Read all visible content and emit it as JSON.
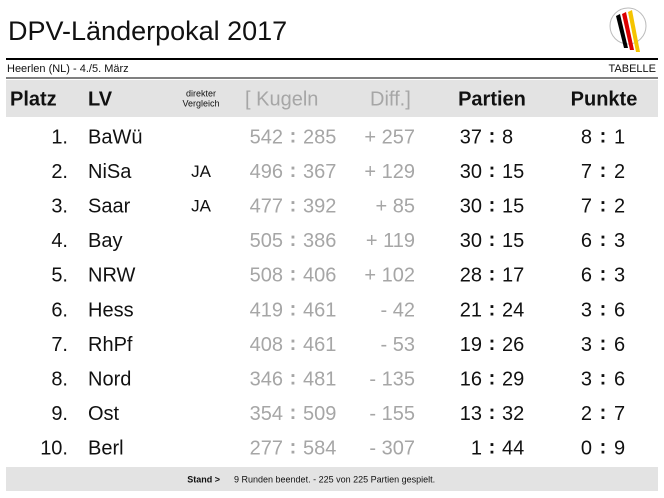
{
  "header": {
    "title": "DPV-Länderpokal 2017",
    "location": "Heerlen (NL) - 4./5. März",
    "section": "TABELLE"
  },
  "table": {
    "columns": {
      "platz": "Platz",
      "lv": "LV",
      "vergleich": [
        "direkter",
        "Vergleich"
      ],
      "kugeln": "[ Kugeln",
      "diff": "Diff.]",
      "partien": "Partien",
      "punkte": "Punkte"
    },
    "separator": ":",
    "rows": [
      {
        "platz": "1.",
        "lv": "BaWü",
        "kugeln": [
          "542",
          "285"
        ],
        "diff": "+ 257",
        "partien": [
          "37",
          "8"
        ],
        "punkte": [
          "8",
          "1"
        ]
      },
      {
        "platz": "2.",
        "lv": "NiSa",
        "vergleich": "JA",
        "kugeln": [
          "496",
          "367"
        ],
        "diff": "+ 129",
        "partien": [
          "30",
          "15"
        ],
        "punkte": [
          "7",
          "2"
        ]
      },
      {
        "platz": "3.",
        "lv": "Saar",
        "vergleich": "JA",
        "kugeln": [
          "477",
          "392"
        ],
        "diff": "+ 85",
        "partien": [
          "30",
          "15"
        ],
        "punkte": [
          "7",
          "2"
        ]
      },
      {
        "platz": "4.",
        "lv": "Bay",
        "kugeln": [
          "505",
          "386"
        ],
        "diff": "+ 119",
        "partien": [
          "30",
          "15"
        ],
        "punkte": [
          "6",
          "3"
        ]
      },
      {
        "platz": "5.",
        "lv": "NRW",
        "kugeln": [
          "508",
          "406"
        ],
        "diff": "+ 102",
        "partien": [
          "28",
          "17"
        ],
        "punkte": [
          "6",
          "3"
        ]
      },
      {
        "platz": "6.",
        "lv": "Hess",
        "kugeln": [
          "419",
          "461"
        ],
        "diff": "- 42",
        "partien": [
          "21",
          "24"
        ],
        "punkte": [
          "3",
          "6"
        ]
      },
      {
        "platz": "7.",
        "lv": "RhPf",
        "kugeln": [
          "408",
          "461"
        ],
        "diff": "- 53",
        "partien": [
          "19",
          "26"
        ],
        "punkte": [
          "3",
          "6"
        ]
      },
      {
        "platz": "8.",
        "lv": "Nord",
        "kugeln": [
          "346",
          "481"
        ],
        "diff": "- 135",
        "partien": [
          "16",
          "29"
        ],
        "punkte": [
          "3",
          "6"
        ]
      },
      {
        "platz": "9.",
        "lv": "Ost",
        "kugeln": [
          "354",
          "509"
        ],
        "diff": "- 155",
        "partien": [
          "13",
          "32"
        ],
        "punkte": [
          "2",
          "7"
        ]
      },
      {
        "platz": "10.",
        "lv": "Berl",
        "kugeln": [
          "277",
          "584"
        ],
        "diff": "- 307",
        "partien": [
          "1",
          "44"
        ],
        "punkte": [
          "0",
          "9"
        ]
      }
    ]
  },
  "footer": {
    "label": "Stand >",
    "text": "9 Runden beendet. - 225 von 225 Partien gespielt."
  }
}
